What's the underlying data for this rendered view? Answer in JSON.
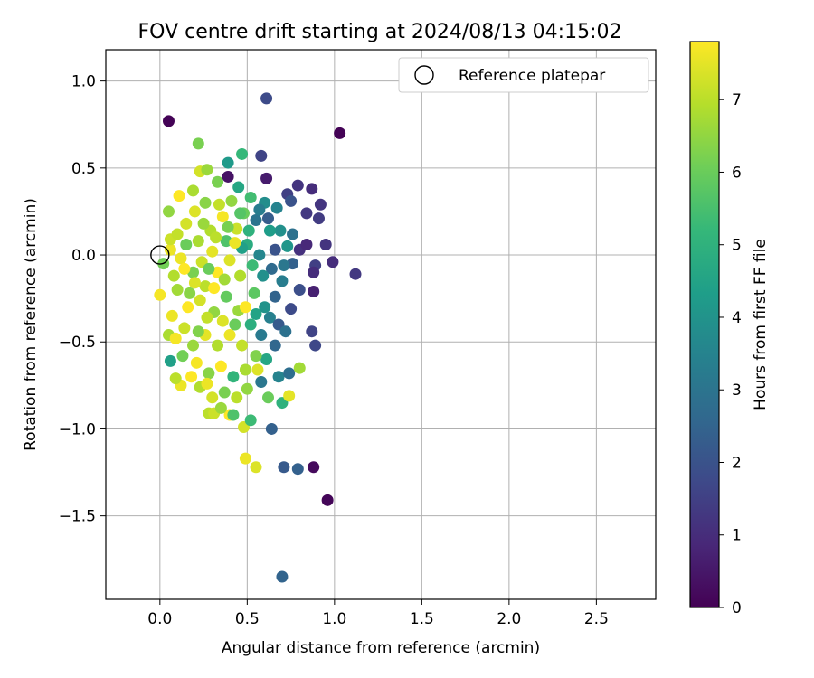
{
  "chart_data": {
    "type": "scatter",
    "title": "FOV centre drift starting at 2024/08/13 04:15:02",
    "xlabel": "Angular distance from reference (arcmin)",
    "ylabel": "Rotation from reference (arcmin)",
    "xlim": [
      -0.31,
      2.84
    ],
    "ylim": [
      -1.98,
      1.18
    ],
    "xticks": [
      0.0,
      0.5,
      1.0,
      1.5,
      2.0,
      2.5
    ],
    "xtick_labels": [
      "0.0",
      "0.5",
      "1.0",
      "1.5",
      "2.0",
      "2.5"
    ],
    "yticks": [
      1.0,
      0.5,
      0.0,
      -0.5,
      -1.0,
      -1.5
    ],
    "ytick_labels": [
      "1.0",
      "0.5",
      "0.0",
      "−0.5",
      "−1.0",
      "−1.5"
    ],
    "grid": true,
    "legend": {
      "position": "top-right",
      "entries": [
        {
          "label": "Reference platepar",
          "marker": "open-circle"
        }
      ]
    },
    "reference_point": {
      "x": 0.0,
      "y": 0.0
    },
    "colorbar": {
      "label": "Hours from first FF file",
      "range": [
        0,
        7.8
      ],
      "ticks": [
        0,
        1,
        2,
        3,
        4,
        5,
        6,
        7
      ],
      "tick_labels": [
        "0",
        "1",
        "2",
        "3",
        "4",
        "5",
        "6",
        "7"
      ],
      "colormap": "viridis",
      "colors": [
        "#440154",
        "#482878",
        "#3e4989",
        "#31688e",
        "#26828e",
        "#1f9e89",
        "#35b779",
        "#6ece58",
        "#b5de2b",
        "#fde725"
      ]
    },
    "points_hours_encoding": "c = hours from first FF file",
    "points": [
      [
        0.61,
        0.9,
        1.8
      ],
      [
        0.05,
        0.77,
        0.05
      ],
      [
        1.03,
        0.7,
        0.05
      ],
      [
        0.22,
        0.64,
        6.2
      ],
      [
        0.47,
        0.58,
        5.2
      ],
      [
        0.58,
        0.57,
        1.6
      ],
      [
        0.23,
        0.48,
        7.3
      ],
      [
        0.27,
        0.49,
        6.6
      ],
      [
        0.39,
        0.53,
        4.2
      ],
      [
        0.39,
        0.45,
        0.4
      ],
      [
        0.61,
        0.44,
        0.6
      ],
      [
        0.79,
        0.4,
        1.2
      ],
      [
        0.87,
        0.38,
        1.0
      ],
      [
        0.73,
        0.35,
        1.5
      ],
      [
        0.92,
        0.29,
        1.2
      ],
      [
        0.75,
        0.31,
        2.0
      ],
      [
        0.84,
        0.24,
        1.3
      ],
      [
        0.91,
        0.21,
        1.4
      ],
      [
        0.67,
        0.27,
        3.5
      ],
      [
        0.69,
        0.14,
        3.9
      ],
      [
        0.76,
        0.12,
        2.9
      ],
      [
        0.8,
        0.03,
        1.1
      ],
      [
        0.84,
        0.06,
        0.9
      ],
      [
        0.95,
        0.06,
        1.2
      ],
      [
        0.99,
        -0.04,
        1.0
      ],
      [
        1.12,
        -0.11,
        1.3
      ],
      [
        0.89,
        -0.06,
        1.5
      ],
      [
        0.88,
        -0.1,
        1.0
      ],
      [
        0.76,
        -0.05,
        2.4
      ],
      [
        0.8,
        -0.2,
        1.9
      ],
      [
        0.88,
        -0.21,
        0.7
      ],
      [
        0.75,
        -0.31,
        1.8
      ],
      [
        0.87,
        -0.44,
        1.6
      ],
      [
        0.89,
        -0.52,
        1.7
      ],
      [
        0.68,
        -0.7,
        3.5
      ],
      [
        0.74,
        -0.68,
        2.8
      ],
      [
        0.8,
        -0.65,
        6.7
      ],
      [
        0.7,
        -0.85,
        5.0
      ],
      [
        0.74,
        -0.81,
        7.5
      ],
      [
        0.64,
        -1.0,
        2.4
      ],
      [
        0.71,
        -1.22,
        2.2
      ],
      [
        0.79,
        -1.23,
        2.4
      ],
      [
        0.88,
        -1.22,
        0.2
      ],
      [
        0.96,
        -1.41,
        0.1
      ],
      [
        0.7,
        -1.85,
        2.5
      ],
      [
        0.49,
        -1.17,
        7.6
      ],
      [
        0.55,
        -1.22,
        7.4
      ],
      [
        0.48,
        -0.99,
        7.3
      ],
      [
        0.4,
        -0.92,
        7.8
      ],
      [
        0.52,
        -0.95,
        5.3
      ],
      [
        0.28,
        -0.91,
        7.0
      ],
      [
        0.31,
        -0.91,
        7.2
      ],
      [
        0.5,
        -0.77,
        6.5
      ],
      [
        0.58,
        -0.73,
        3.1
      ],
      [
        0.62,
        -0.82,
        6.0
      ],
      [
        0.06,
        -0.61,
        4.4
      ],
      [
        0.12,
        -0.75,
        7.6
      ],
      [
        0.09,
        -0.71,
        7.0
      ],
      [
        0.05,
        -0.46,
        6.8
      ],
      [
        0.07,
        -0.35,
        7.6
      ],
      [
        0.0,
        -0.23,
        7.7
      ],
      [
        0.02,
        -0.05,
        6.1
      ],
      [
        0.06,
        0.03,
        7.6
      ],
      [
        0.06,
        0.09,
        7.2
      ],
      [
        0.05,
        0.25,
        6.5
      ],
      [
        0.11,
        0.34,
        7.8
      ],
      [
        0.19,
        0.37,
        6.8
      ],
      [
        0.33,
        0.42,
        6.2
      ],
      [
        0.45,
        0.39,
        4.6
      ],
      [
        0.52,
        0.33,
        5.4
      ],
      [
        0.6,
        0.3,
        3.8
      ],
      [
        0.55,
        0.2,
        3.0
      ],
      [
        0.63,
        0.14,
        4.3
      ],
      [
        0.48,
        0.24,
        6.0
      ],
      [
        0.34,
        0.29,
        7.1
      ],
      [
        0.26,
        0.3,
        6.4
      ],
      [
        0.15,
        0.18,
        7.3
      ],
      [
        0.22,
        0.08,
        6.8
      ],
      [
        0.3,
        0.02,
        7.5
      ],
      [
        0.38,
        0.08,
        5.6
      ],
      [
        0.44,
        0.15,
        7.2
      ],
      [
        0.5,
        0.06,
        4.8
      ],
      [
        0.57,
        0.0,
        3.6
      ],
      [
        0.64,
        -0.08,
        2.7
      ],
      [
        0.7,
        -0.15,
        3.3
      ],
      [
        0.66,
        -0.24,
        2.5
      ],
      [
        0.6,
        -0.3,
        4.0
      ],
      [
        0.54,
        -0.22,
        5.8
      ],
      [
        0.46,
        -0.12,
        6.9
      ],
      [
        0.4,
        -0.03,
        7.4
      ],
      [
        0.33,
        -0.1,
        7.8
      ],
      [
        0.26,
        -0.18,
        7.0
      ],
      [
        0.19,
        -0.1,
        6.2
      ],
      [
        0.12,
        -0.02,
        7.6
      ],
      [
        0.1,
        -0.2,
        6.7
      ],
      [
        0.16,
        -0.3,
        7.9
      ],
      [
        0.23,
        -0.26,
        7.3
      ],
      [
        0.31,
        -0.33,
        6.5
      ],
      [
        0.38,
        -0.24,
        5.9
      ],
      [
        0.45,
        -0.32,
        6.6
      ],
      [
        0.52,
        -0.4,
        4.9
      ],
      [
        0.58,
        -0.46,
        3.2
      ],
      [
        0.66,
        -0.52,
        2.6
      ],
      [
        0.61,
        -0.6,
        4.6
      ],
      [
        0.55,
        -0.58,
        6.3
      ],
      [
        0.47,
        -0.52,
        7.1
      ],
      [
        0.4,
        -0.46,
        7.6
      ],
      [
        0.33,
        -0.52,
        6.9
      ],
      [
        0.26,
        -0.46,
        7.5
      ],
      [
        0.19,
        -0.52,
        6.6
      ],
      [
        0.14,
        -0.42,
        7.2
      ],
      [
        0.21,
        -0.62,
        7.7
      ],
      [
        0.28,
        -0.68,
        6.4
      ],
      [
        0.35,
        -0.64,
        7.8
      ],
      [
        0.42,
        -0.7,
        5.1
      ],
      [
        0.49,
        -0.66,
        6.8
      ],
      [
        0.56,
        -0.66,
        7.4
      ],
      [
        0.44,
        -0.82,
        7.0
      ],
      [
        0.37,
        -0.79,
        6.2
      ],
      [
        0.3,
        -0.82,
        7.3
      ],
      [
        0.23,
        -0.76,
        6.9
      ],
      [
        0.18,
        -0.7,
        7.9
      ],
      [
        0.35,
        -0.88,
        6.6
      ],
      [
        0.42,
        -0.92,
        5.6
      ],
      [
        0.27,
        -0.74,
        7.6
      ],
      [
        0.13,
        -0.58,
        6.1
      ],
      [
        0.09,
        -0.48,
        7.7
      ],
      [
        0.17,
        -0.22,
        6.4
      ],
      [
        0.24,
        -0.04,
        7.2
      ],
      [
        0.29,
        0.14,
        6.9
      ],
      [
        0.36,
        0.22,
        7.7
      ],
      [
        0.41,
        0.31,
        6.5
      ],
      [
        0.47,
        0.04,
        4.4
      ],
      [
        0.53,
        -0.06,
        5.3
      ],
      [
        0.59,
        -0.12,
        3.9
      ],
      [
        0.63,
        -0.36,
        3.4
      ],
      [
        0.68,
        -0.4,
        2.2
      ],
      [
        0.72,
        -0.44,
        2.9
      ],
      [
        0.71,
        -0.06,
        3.1
      ],
      [
        0.73,
        0.05,
        4.1
      ],
      [
        0.66,
        0.03,
        2.0
      ],
      [
        0.62,
        0.21,
        2.3
      ],
      [
        0.57,
        0.26,
        3.3
      ],
      [
        0.51,
        0.14,
        5.0
      ],
      [
        0.43,
        0.07,
        7.6
      ],
      [
        0.37,
        -0.14,
        6.7
      ],
      [
        0.31,
        -0.19,
        7.9
      ],
      [
        0.27,
        -0.36,
        7.1
      ],
      [
        0.22,
        -0.44,
        6.3
      ],
      [
        0.36,
        -0.38,
        7.4
      ],
      [
        0.43,
        -0.4,
        6.0
      ],
      [
        0.49,
        -0.3,
        7.8
      ],
      [
        0.55,
        -0.34,
        4.5
      ],
      [
        0.15,
        0.06,
        6.0
      ],
      [
        0.2,
        0.25,
        7.4
      ],
      [
        0.25,
        0.18,
        6.6
      ],
      [
        0.32,
        0.1,
        7.0
      ],
      [
        0.39,
        0.16,
        6.2
      ],
      [
        0.46,
        0.24,
        5.7
      ],
      [
        0.1,
        0.12,
        7.1
      ],
      [
        0.08,
        -0.12,
        6.9
      ],
      [
        0.14,
        -0.08,
        7.8
      ],
      [
        0.2,
        -0.16,
        7.4
      ],
      [
        0.28,
        -0.08,
        6.0
      ]
    ]
  }
}
